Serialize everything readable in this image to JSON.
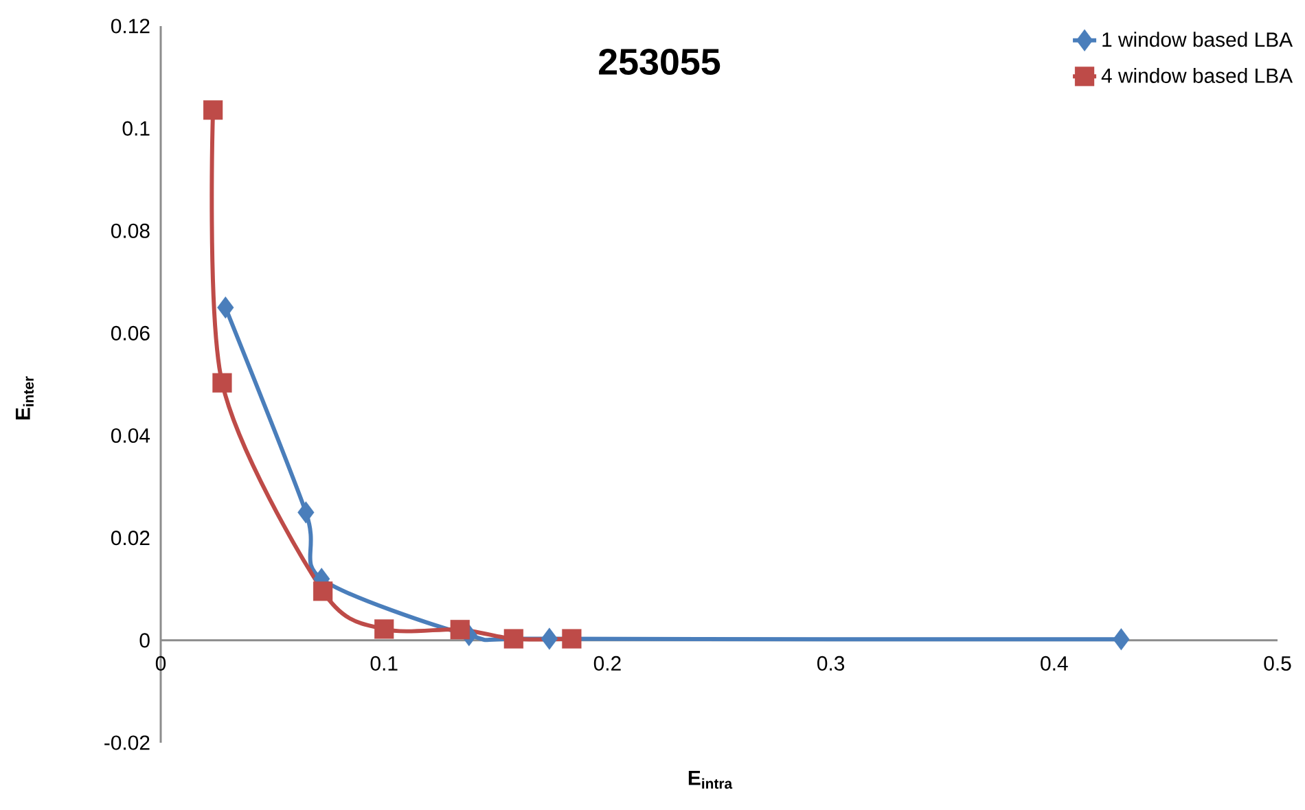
{
  "chart_data": {
    "type": "line",
    "title": "253055",
    "xlabel": "E$_{intra}$",
    "ylabel": "E$_{inter}$",
    "xlim": [
      0,
      0.5
    ],
    "xticks": [
      0,
      0.1,
      0.2,
      0.3,
      0.4,
      0.5
    ],
    "ylim": [
      -0.02,
      0.12
    ],
    "yticks": [
      -0.02,
      0,
      0.02,
      0.04,
      0.06,
      0.08,
      0.1,
      0.12
    ],
    "grid": false,
    "legend": "top right",
    "series": [
      {
        "name": "1 window based LBA",
        "color": "#4a7ebb",
        "marker": "diamond",
        "x": [
          0.029,
          0.065,
          0.072,
          0.138,
          0.174,
          0.43
        ],
        "values": [
          0.065,
          0.025,
          0.012,
          0.001,
          0.0003,
          0.0002
        ]
      },
      {
        "name": "4 window based LBA",
        "color": "#be4b48",
        "marker": "square",
        "x": [
          0.0234,
          0.0275,
          0.0726,
          0.1,
          0.134,
          0.158,
          0.184
        ],
        "values": [
          0.1036,
          0.0503,
          0.0096,
          0.0022,
          0.0021,
          0.0003,
          0.0003
        ]
      }
    ]
  }
}
